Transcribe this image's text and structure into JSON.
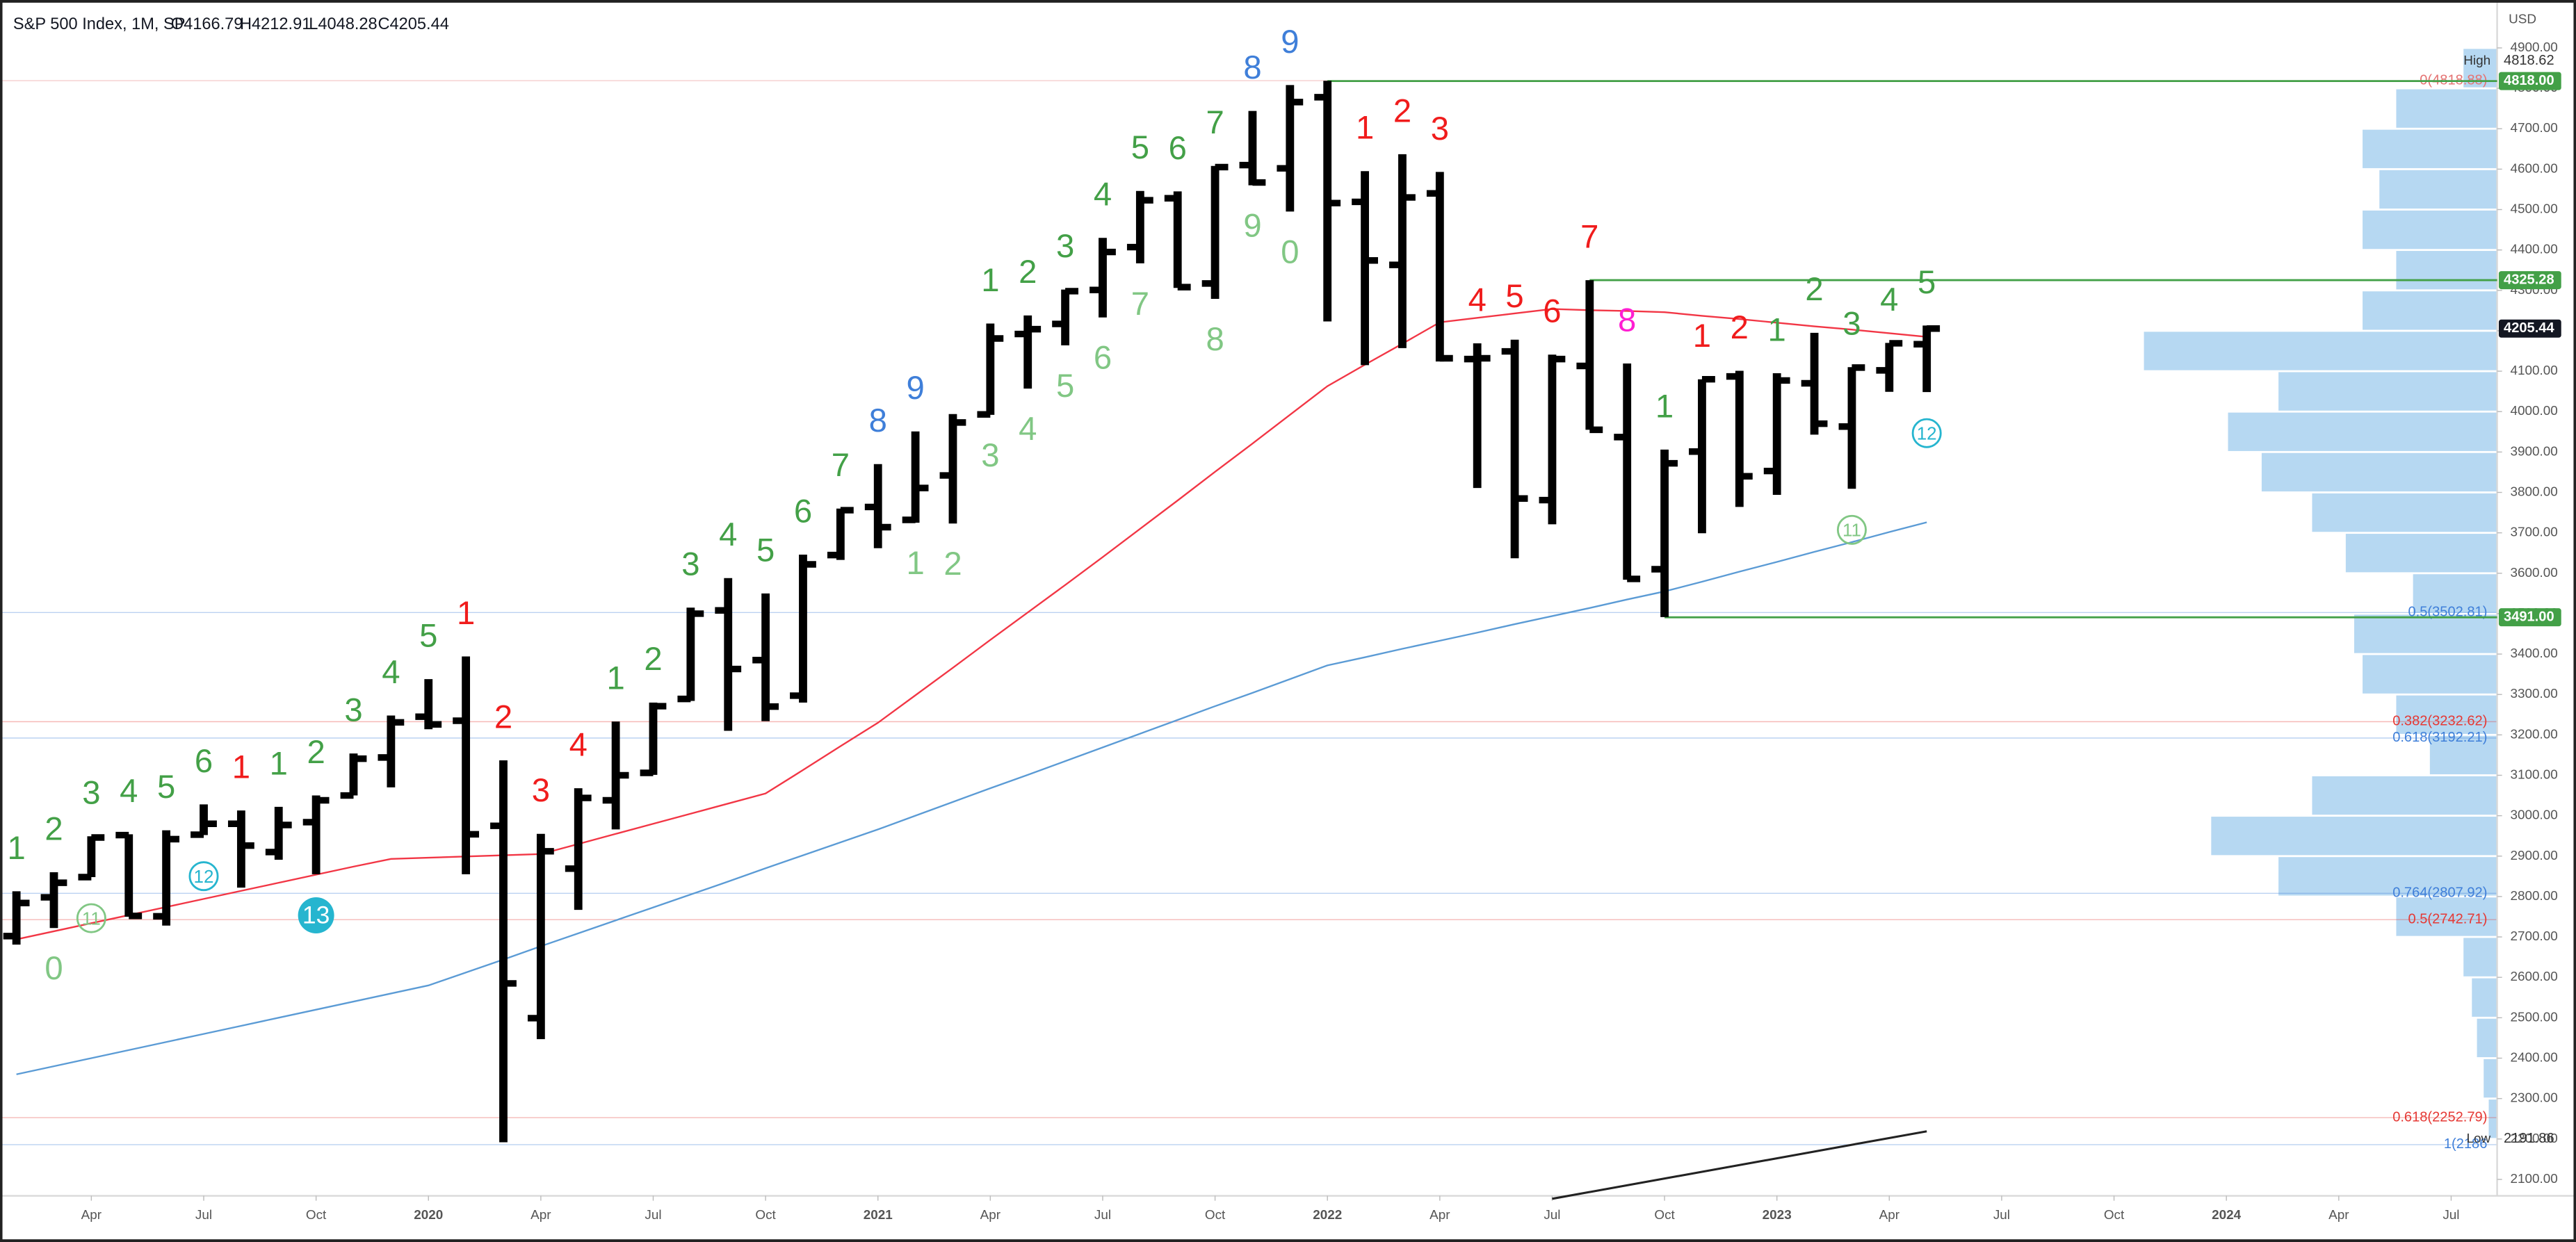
{
  "chart_data": {
    "type": "ohlc",
    "title": "S&P 500 Index, 1M, SP",
    "header_values": [
      "O4166.79",
      "H4212.91",
      "L4048.28",
      "C4205.44"
    ],
    "currency": "USD",
    "x": [
      "2019-02",
      "2019-03",
      "2019-04",
      "2019-05",
      "2019-06",
      "2019-07",
      "2019-08",
      "2019-09",
      "2019-10",
      "2019-11",
      "2019-12",
      "2020-01",
      "2020-02",
      "2020-03",
      "2020-04",
      "2020-05",
      "2020-06",
      "2020-07",
      "2020-08",
      "2020-09",
      "2020-10",
      "2020-11",
      "2020-12",
      "2021-01",
      "2021-02",
      "2021-03",
      "2021-04",
      "2021-05",
      "2021-06",
      "2021-07",
      "2021-08",
      "2021-09",
      "2021-10",
      "2021-11",
      "2021-12",
      "2022-01",
      "2022-02",
      "2022-03",
      "2022-04",
      "2022-05",
      "2022-06",
      "2022-07",
      "2022-08",
      "2022-09",
      "2022-10",
      "2022-11",
      "2022-12",
      "2023-01",
      "2023-02",
      "2023-03",
      "2023-04",
      "2023-05"
    ],
    "open": [
      2702,
      2798,
      2848,
      2952,
      2751,
      2953,
      2980,
      2910,
      2984,
      3050,
      3144,
      3245,
      3235,
      2975,
      2499,
      2869,
      3038,
      3106,
      3289,
      3508,
      3385,
      3297,
      3645,
      3764,
      3732,
      3842,
      3993,
      4192,
      4217,
      4301,
      4407,
      4528,
      4317,
      4610,
      4602,
      4778,
      4519,
      4363,
      4540,
      4130,
      4149,
      3781,
      4113,
      3937,
      3610,
      3901,
      4087,
      3853,
      4070,
      3963,
      4102,
      4166.79
    ],
    "high": [
      2813,
      2860,
      2949,
      2954,
      2964,
      3028,
      3013,
      3022,
      3050,
      3154,
      3248,
      3338,
      3394,
      3137,
      2955,
      3068,
      3233,
      3280,
      3515,
      3588,
      3550,
      3646,
      3760,
      3870,
      3951,
      3994,
      4218,
      4238,
      4302,
      4430,
      4546,
      4545,
      4608,
      4744,
      4808,
      4818.62,
      4595,
      4637,
      4593,
      4169,
      4178,
      4141,
      4325.28,
      4119,
      3906,
      4080,
      4101,
      4095,
      4195,
      4110,
      4170,
      4212.91
    ],
    "low": [
      2681,
      2722,
      2848,
      2750,
      2728,
      2952,
      2822,
      2891,
      2855,
      3050,
      3070,
      3214,
      2855,
      2191.86,
      2447,
      2767,
      2966,
      3101,
      3284,
      3210,
      3234,
      3280,
      3633,
      3662,
      3725,
      3723,
      3992,
      4057,
      4164,
      4233,
      4367,
      4306,
      4279,
      4560,
      4495,
      4223,
      4115,
      4157,
      4124,
      3811,
      3637,
      3721,
      3955,
      3584,
      3491.58,
      3699,
      3764,
      3794,
      3943,
      3809,
      4049,
      4048.28
    ],
    "close": [
      2784,
      2834,
      2946,
      2752,
      2942,
      2980,
      2926,
      2977,
      3038,
      3141,
      3231,
      3226,
      2954,
      2585,
      2912,
      3044,
      3100,
      3271,
      3500,
      3363,
      3270,
      3622,
      3756,
      3714,
      3811,
      3973,
      4181,
      4204,
      4298,
      4395,
      4523,
      4308,
      4605,
      4567,
      4766,
      4516,
      4374,
      4530,
      4132,
      4132,
      3785,
      4130,
      3955,
      3586,
      3872,
      4080,
      3840,
      4077,
      3970,
      4109,
      4169,
      4205.44
    ],
    "moving_averages": [
      {
        "color": "#f23645",
        "values": [
          2694,
          2714,
          2734,
          2754,
          2774,
          2794,
          2814,
          2834,
          2854,
          2874,
          2893,
          2896,
          2899,
          2902,
          2905,
          2930,
          2955,
          2980,
          3005,
          3030,
          3055,
          3113,
          3172,
          3230,
          3298,
          3366,
          3435,
          3503,
          3571,
          3640,
          3710,
          3780,
          3851,
          3921,
          3992,
          4063,
          4116,
          4168,
          4221,
          4232,
          4243,
          4254,
          4251,
          4249,
          4246,
          4237,
          4229,
          4220,
          4211,
          4203,
          4194,
          4185
        ]
      },
      {
        "color": "#5b9bd5",
        "values": [
          2360,
          2380,
          2400,
          2420,
          2440,
          2460,
          2480,
          2500,
          2520,
          2540,
          2560,
          2580,
          2612,
          2644,
          2677,
          2709,
          2741,
          2773,
          2805,
          2837,
          2870,
          2902,
          2934,
          2966,
          3000,
          3034,
          3068,
          3101,
          3135,
          3169,
          3203,
          3237,
          3271,
          3304,
          3338,
          3372,
          3392,
          3413,
          3433,
          3453,
          3474,
          3494,
          3514,
          3535,
          3555,
          3579,
          3604,
          3628,
          3653,
          3677,
          3702,
          3726
        ]
      }
    ],
    "trendline": {
      "color": "#222222",
      "x": [
        "2022-07",
        "2023-05"
      ],
      "values": [
        2052,
        2219
      ]
    },
    "ylim": [
      1970,
      5018
    ],
    "yticks": [
      {
        "value": 2100,
        "label": "2100.00"
      },
      {
        "value": 2200,
        "label": "2200.00"
      },
      {
        "value": 2300,
        "label": "2300.00"
      },
      {
        "value": 2400,
        "label": "2400.00"
      },
      {
        "value": 2500,
        "label": "2500.00"
      },
      {
        "value": 2600,
        "label": "2600.00"
      },
      {
        "value": 2700,
        "label": "2700.00"
      },
      {
        "value": 2800,
        "label": "2800.00"
      },
      {
        "value": 2900,
        "label": "2900.00"
      },
      {
        "value": 3000,
        "label": "3000.00"
      },
      {
        "value": 3100,
        "label": "3100.00"
      },
      {
        "value": 3200,
        "label": "3200.00"
      },
      {
        "value": 3300,
        "label": "3300.00"
      },
      {
        "value": 3400,
        "label": "3400.00"
      },
      {
        "value": 3500,
        "label": "3500.00"
      },
      {
        "value": 3600,
        "label": "3600.00"
      },
      {
        "value": 3700,
        "label": "3700.00"
      },
      {
        "value": 3800,
        "label": "3800.00"
      },
      {
        "value": 3900,
        "label": "3900.00"
      },
      {
        "value": 4000,
        "label": "4000.00"
      },
      {
        "value": 4100,
        "label": "4100.00"
      },
      {
        "value": 4200,
        "label": "4200.00"
      },
      {
        "value": 4300,
        "label": "4300.00"
      },
      {
        "value": 4400,
        "label": "4400.00"
      },
      {
        "value": 4500,
        "label": "4500.00"
      },
      {
        "value": 4600,
        "label": "4600.00"
      },
      {
        "value": 4700,
        "label": "4700.00"
      },
      {
        "value": 4800,
        "label": "4800.00"
      },
      {
        "value": 4900,
        "label": "4900.00"
      }
    ],
    "xticks": [
      {
        "value": "2019-04",
        "label": "Apr"
      },
      {
        "value": "2019-07",
        "label": "Jul"
      },
      {
        "value": "2019-10",
        "label": "Oct"
      },
      {
        "value": "2020-01",
        "label": "2020"
      },
      {
        "value": "2020-04",
        "label": "Apr"
      },
      {
        "value": "2020-07",
        "label": "Jul"
      },
      {
        "value": "2020-10",
        "label": "Oct"
      },
      {
        "value": "2021-01",
        "label": "2021"
      },
      {
        "value": "2021-04",
        "label": "Apr"
      },
      {
        "value": "2021-07",
        "label": "Jul"
      },
      {
        "value": "2021-10",
        "label": "Oct"
      },
      {
        "value": "2022-01",
        "label": "2022"
      },
      {
        "value": "2022-04",
        "label": "Apr"
      },
      {
        "value": "2022-07",
        "label": "Jul"
      },
      {
        "value": "2022-10",
        "label": "Oct"
      },
      {
        "value": "2023-01",
        "label": "2023"
      },
      {
        "value": "2023-04",
        "label": "Apr"
      },
      {
        "value": "2023-07",
        "label": "Jul"
      },
      {
        "value": "2023-10",
        "label": "Oct"
      },
      {
        "value": "2024-01",
        "label": "2024"
      },
      {
        "value": "2024-04",
        "label": "Apr"
      },
      {
        "value": "2024-07",
        "label": "Jul"
      }
    ],
    "palette": {
      "g": "#43a047",
      "r": "#f01c1c",
      "b": "#3f7fd9",
      "m": "#ff1fd2",
      "lg": "#81c784",
      "c": "#26b5cf"
    },
    "setup_labels": [
      {
        "x": "2019-02",
        "text": "1",
        "color": "g"
      },
      {
        "x": "2019-03",
        "text": "2",
        "color": "g"
      },
      {
        "x": "2019-04",
        "text": "3",
        "color": "g"
      },
      {
        "x": "2019-05",
        "text": "4",
        "color": "g"
      },
      {
        "x": "2019-06",
        "text": "5",
        "color": "g"
      },
      {
        "x": "2019-07",
        "text": "6",
        "color": "g"
      },
      {
        "x": "2019-08",
        "text": "1",
        "color": "r"
      },
      {
        "x": "2019-09",
        "text": "1",
        "color": "g"
      },
      {
        "x": "2019-10",
        "text": "2",
        "color": "g"
      },
      {
        "x": "2019-11",
        "text": "3",
        "color": "g"
      },
      {
        "x": "2019-12",
        "text": "4",
        "color": "g"
      },
      {
        "x": "2020-01",
        "text": "5",
        "color": "g"
      },
      {
        "x": "2020-02",
        "text": "1",
        "color": "r"
      },
      {
        "x": "2020-03",
        "text": "2",
        "color": "r"
      },
      {
        "x": "2020-04",
        "text": "3",
        "color": "r"
      },
      {
        "x": "2020-05",
        "text": "4",
        "color": "r"
      },
      {
        "x": "2020-06",
        "text": "1",
        "color": "g"
      },
      {
        "x": "2020-07",
        "text": "2",
        "color": "g"
      },
      {
        "x": "2020-08",
        "text": "3",
        "color": "g"
      },
      {
        "x": "2020-09",
        "text": "4",
        "color": "g"
      },
      {
        "x": "2020-10",
        "text": "5",
        "color": "g"
      },
      {
        "x": "2020-11",
        "text": "6",
        "color": "g"
      },
      {
        "x": "2020-12",
        "text": "7",
        "color": "g"
      },
      {
        "x": "2021-01",
        "text": "8",
        "color": "b"
      },
      {
        "x": "2021-02",
        "text": "9",
        "color": "b"
      },
      {
        "x": "2021-04",
        "text": "1",
        "color": "g"
      },
      {
        "x": "2021-05",
        "text": "2",
        "color": "g"
      },
      {
        "x": "2021-06",
        "text": "3",
        "color": "g"
      },
      {
        "x": "2021-07",
        "text": "4",
        "color": "g"
      },
      {
        "x": "2021-08",
        "text": "5",
        "color": "g"
      },
      {
        "x": "2021-09",
        "text": "6",
        "color": "g"
      },
      {
        "x": "2021-10",
        "text": "7",
        "color": "g"
      },
      {
        "x": "2021-11",
        "text": "8",
        "color": "b"
      },
      {
        "x": "2021-12",
        "text": "9",
        "color": "b"
      },
      {
        "x": "2022-02",
        "text": "1",
        "color": "r"
      },
      {
        "x": "2022-03",
        "text": "2",
        "color": "r"
      },
      {
        "x": "2022-04",
        "text": "3",
        "color": "r"
      },
      {
        "x": "2022-05",
        "text": "4",
        "color": "r"
      },
      {
        "x": "2022-06",
        "text": "5",
        "color": "r"
      },
      {
        "x": "2022-07",
        "text": "6",
        "color": "r"
      },
      {
        "x": "2022-08",
        "text": "7",
        "color": "r"
      },
      {
        "x": "2022-09",
        "text": "8",
        "color": "m"
      },
      {
        "x": "2022-10",
        "text": "1",
        "color": "g"
      },
      {
        "x": "2022-11",
        "text": "1",
        "color": "r"
      },
      {
        "x": "2022-12",
        "text": "2",
        "color": "r"
      },
      {
        "x": "2023-01",
        "text": "1",
        "color": "g"
      },
      {
        "x": "2023-02",
        "text": "2",
        "color": "g"
      },
      {
        "x": "2023-03",
        "text": "3",
        "color": "g"
      },
      {
        "x": "2023-04",
        "text": "4",
        "color": "g"
      },
      {
        "x": "2023-05",
        "text": "5",
        "color": "g"
      }
    ],
    "countdown_labels": [
      {
        "x": "2019-03",
        "text": "0",
        "color": "lg",
        "style": "plain"
      },
      {
        "x": "2019-04",
        "text": "11",
        "color": "lg",
        "style": "circle"
      },
      {
        "x": "2019-07",
        "text": "12",
        "color": "c",
        "style": "circle"
      },
      {
        "x": "2019-10",
        "text": "13",
        "color": "c",
        "style": "filled"
      },
      {
        "x": "2021-02",
        "text": "1",
        "color": "lg",
        "style": "plain"
      },
      {
        "x": "2021-03",
        "text": "2",
        "color": "lg",
        "style": "plain"
      },
      {
        "x": "2021-04",
        "text": "3",
        "color": "lg",
        "style": "plain"
      },
      {
        "x": "2021-05",
        "text": "4",
        "color": "lg",
        "style": "plain"
      },
      {
        "x": "2021-06",
        "text": "5",
        "color": "lg",
        "style": "plain"
      },
      {
        "x": "2021-07",
        "text": "6",
        "color": "lg",
        "style": "plain"
      },
      {
        "x": "2021-08",
        "text": "7",
        "color": "lg",
        "style": "plain"
      },
      {
        "x": "2021-10",
        "text": "8",
        "color": "lg",
        "style": "plain"
      },
      {
        "x": "2021-11",
        "text": "9",
        "color": "lg",
        "style": "plain"
      },
      {
        "x": "2021-12",
        "text": "0",
        "color": "lg",
        "style": "plain"
      },
      {
        "x": "2023-03",
        "text": "11",
        "color": "lg",
        "style": "circle"
      },
      {
        "x": "2023-05",
        "text": "12",
        "color": "c",
        "style": "circle"
      }
    ],
    "levels": [
      {
        "label": "0(4818.88)",
        "value": 4818.88,
        "color": "#e57373"
      },
      {
        "label": "0.5(3502.81)",
        "value": 3502.81,
        "color": "#3f7fd9"
      },
      {
        "label": "0.382(3232.62)",
        "value": 3232.62,
        "color": "#e53935"
      },
      {
        "label": "0.618(3192.21)",
        "value": 3192.21,
        "color": "#3f7fd9"
      },
      {
        "label": "0.764(2807.92)",
        "value": 2807.92,
        "color": "#3f7fd9"
      },
      {
        "label": "0.5(2742.71)",
        "value": 2742.71,
        "color": "#e53935"
      },
      {
        "label": "0.618(2252.79)",
        "value": 2252.79,
        "color": "#e53935"
      },
      {
        "label": "1(2186",
        "value": 2186,
        "color": "#3f7fd9"
      }
    ],
    "hlines": [
      {
        "value": 4818,
        "label": "4818.00",
        "from": "2022-01",
        "color": "#43a047"
      },
      {
        "value": 4325.28,
        "label": "4325.28",
        "from": "2022-08",
        "color": "#43a047"
      },
      {
        "value": 3491,
        "label": "3491.00",
        "from": "2022-10",
        "color": "#43a047"
      }
    ],
    "last_price": {
      "value": 4205.44,
      "label": "4205.44"
    },
    "high_marker": {
      "name": "High",
      "value": 4818.62,
      "label": "4818.62"
    },
    "low_marker": {
      "name": "Low",
      "value": 2191.86,
      "label": "2191.86"
    },
    "volume_profile": {
      "color": "#9ecbee",
      "bins": [
        2200,
        2300,
        2400,
        2500,
        2600,
        2700,
        2800,
        2900,
        3000,
        3100,
        3200,
        3300,
        3400,
        3500,
        3600,
        3700,
        3800,
        3900,
        4000,
        4100,
        4200,
        4300,
        4400,
        4500,
        4600,
        4700,
        4800,
        4900
      ],
      "values": [
        5,
        8,
        12,
        15,
        20,
        60,
        130,
        170,
        110,
        40,
        60,
        80,
        85,
        50,
        90,
        110,
        140,
        160,
        130,
        210,
        80,
        60,
        80,
        70,
        80,
        60,
        20
      ]
    }
  }
}
